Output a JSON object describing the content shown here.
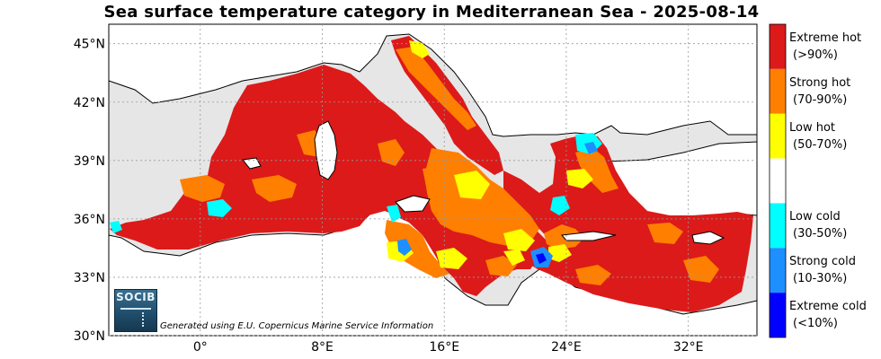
{
  "title": "Sea surface temperature category in Mediterranean Sea - 2025-08-14",
  "map": {
    "land_color": "#ffffff",
    "ocean_outside_color": "#e6e6e6",
    "lon_ticks": [
      {
        "value": 0,
        "label": "0°"
      },
      {
        "value": 8,
        "label": "8°E"
      },
      {
        "value": 16,
        "label": "16°E"
      },
      {
        "value": 24,
        "label": "24°E"
      },
      {
        "value": 32,
        "label": "32°E"
      }
    ],
    "lat_ticks": [
      {
        "value": 45,
        "label": "45°N"
      },
      {
        "value": 42,
        "label": "42°N"
      },
      {
        "value": 39,
        "label": "39°N"
      },
      {
        "value": 36,
        "label": "36°N"
      },
      {
        "value": 33,
        "label": "33°N"
      },
      {
        "value": 30,
        "label": "30°N"
      }
    ],
    "lon_range": [
      -6,
      36.5
    ],
    "lat_range": [
      30,
      46
    ],
    "grid": true
  },
  "legend": {
    "categories": [
      {
        "line1": "Extreme hot",
        "line2": "(>90%)",
        "color": "#dc1a1a"
      },
      {
        "line1": "Strong hot",
        "line2": "(70-90%)",
        "color": "#ff7f00"
      },
      {
        "line1": "Low hot",
        "line2": "(50-70%)",
        "color": "#ffff00"
      },
      {
        "line1": "",
        "line2": "",
        "color": "#ffffff"
      },
      {
        "line1": "Low cold",
        "line2": "(30-50%)",
        "color": "#00ffff"
      },
      {
        "line1": "Strong cold",
        "line2": "(10-30%)",
        "color": "#1e8fff"
      },
      {
        "line1": "Extreme cold",
        "line2": "(<10%)",
        "color": "#0000ff"
      }
    ]
  },
  "logo": {
    "text": "SOCIB"
  },
  "credit": "Generated using E.U. Copernicus Marine Service Information"
}
